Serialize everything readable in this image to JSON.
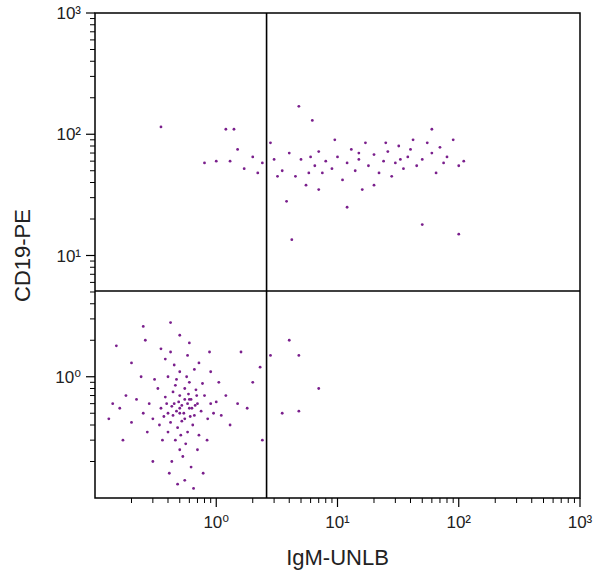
{
  "chart_data": {
    "type": "scatter",
    "log": true,
    "color": "#7a1f8c",
    "x_label": "IgM-UNLB",
    "y_label": "CD19-PE",
    "xlim": [
      0.1,
      1000
    ],
    "ylim": [
      0.1,
      1000
    ],
    "xticks": [
      {
        "value": 1,
        "label": "10⁰"
      },
      {
        "value": 10,
        "label": "10¹"
      },
      {
        "value": 100,
        "label": "10²"
      },
      {
        "value": 1000,
        "label": "10³"
      }
    ],
    "yticks": [
      {
        "value": 1,
        "label": "10⁰"
      },
      {
        "value": 10,
        "label": "10¹"
      },
      {
        "value": 100,
        "label": "10²"
      },
      {
        "value": 1000,
        "label": "10³"
      }
    ],
    "quadrant_gate": {
      "x": 2.6,
      "y": 5.1
    },
    "x": [
      0.5,
      0.45,
      0.55,
      0.6,
      0.4,
      0.5,
      0.48,
      0.62,
      0.35,
      0.58,
      0.42,
      0.52,
      0.66,
      0.38,
      0.46,
      0.7,
      0.3,
      0.55,
      0.44,
      0.64,
      0.5,
      0.75,
      0.28,
      0.6,
      0.4,
      0.53,
      0.8,
      0.33,
      0.47,
      0.72,
      0.25,
      0.57,
      0.43,
      0.85,
      0.36,
      0.68,
      0.22,
      0.9,
      0.5,
      0.41,
      0.62,
      0.2,
      0.95,
      0.31,
      0.77,
      0.55,
      0.18,
      1.0,
      0.45,
      0.66,
      0.27,
      0.84,
      0.16,
      1.1,
      0.38,
      0.58,
      0.7,
      0.24,
      0.14,
      1.2,
      0.48,
      0.35,
      0.6,
      0.9,
      0.2,
      1.3,
      0.13,
      0.78,
      0.3,
      0.5,
      0.42,
      0.26,
      1.5,
      1.05,
      0.72,
      0.17,
      0.65,
      0.88,
      0.55,
      0.47,
      0.52,
      0.59,
      0.39,
      0.63,
      0.44,
      0.51,
      0.56,
      0.34,
      0.69,
      0.46,
      0.4,
      0.58,
      0.49,
      0.54,
      0.61,
      0.37,
      0.43,
      0.67,
      1.8,
      2.0,
      2.3,
      1.6,
      0.25,
      0.42,
      0.15,
      2.4,
      0.6,
      0.5,
      1.3,
      1.5,
      1.7,
      2.0,
      2.2,
      1.4,
      2.4,
      3.0,
      3.5,
      4.0,
      4.5,
      5.0,
      5.5,
      6.0,
      6.5,
      7.0,
      7.5,
      8.0,
      9.0,
      10,
      11,
      12,
      13,
      14,
      15,
      16,
      18,
      20,
      22,
      24,
      26,
      28,
      30,
      32,
      35,
      38,
      40,
      45,
      50,
      55,
      60,
      65,
      70,
      75,
      80,
      90,
      100,
      110,
      4.8,
      6.2,
      0.35,
      1.0,
      1.2,
      0.8,
      4.2,
      100,
      50,
      12,
      20,
      7.0,
      3.2,
      2.8,
      9.5,
      17,
      25,
      42,
      60,
      33,
      15,
      5.8,
      3.8,
      4,
      4.8,
      3.5,
      4.8,
      7,
      2.8
    ],
    "values": [
      0.5,
      0.6,
      0.45,
      0.55,
      0.5,
      0.7,
      0.38,
      0.65,
      0.55,
      0.35,
      0.42,
      0.58,
      0.48,
      0.68,
      0.3,
      0.6,
      0.45,
      0.8,
      0.75,
      0.4,
      0.25,
      0.52,
      0.6,
      0.9,
      0.35,
      0.22,
      0.7,
      0.8,
      0.95,
      0.33,
      0.5,
      1.0,
      0.2,
      0.45,
      0.3,
      0.78,
      0.65,
      0.6,
      1.1,
      0.16,
      0.18,
      0.42,
      0.5,
      0.95,
      0.88,
      0.14,
      0.7,
      0.62,
      1.25,
      1.15,
      0.35,
      0.3,
      0.55,
      0.48,
      1.4,
      1.5,
      0.25,
      1.0,
      0.6,
      0.7,
      0.13,
      1.7,
      1.9,
      1.1,
      1.3,
      0.4,
      0.45,
      0.16,
      0.2,
      2.2,
      1.6,
      2.0,
      0.6,
      0.9,
      1.3,
      0.3,
      0.12,
      1.6,
      0.65,
      0.52,
      0.43,
      0.72,
      0.6,
      0.55,
      0.48,
      0.33,
      0.28,
      0.4,
      0.7,
      0.85,
      1.0,
      0.6,
      0.62,
      0.5,
      0.47,
      0.47,
      0.57,
      0.58,
      0.55,
      0.9,
      1.2,
      1.6,
      2.6,
      2.8,
      1.8,
      0.3,
      0.65,
      0.55,
      60,
      75,
      52,
      65,
      48,
      110,
      58,
      62,
      50,
      70,
      45,
      62,
      38,
      65,
      55,
      72,
      48,
      60,
      52,
      65,
      42,
      58,
      75,
      50,
      62,
      35,
      55,
      68,
      48,
      60,
      72,
      45,
      58,
      80,
      52,
      65,
      75,
      55,
      62,
      85,
      70,
      48,
      78,
      58,
      65,
      90,
      55,
      60,
      170,
      130,
      115,
      60,
      110,
      58,
      13.5,
      15,
      18,
      25,
      38,
      35,
      45,
      85,
      90,
      85,
      85,
      90,
      110,
      62,
      70,
      48,
      28,
      2.0,
      1.5,
      0.5,
      0.52,
      0.8,
      1.5
    ]
  }
}
